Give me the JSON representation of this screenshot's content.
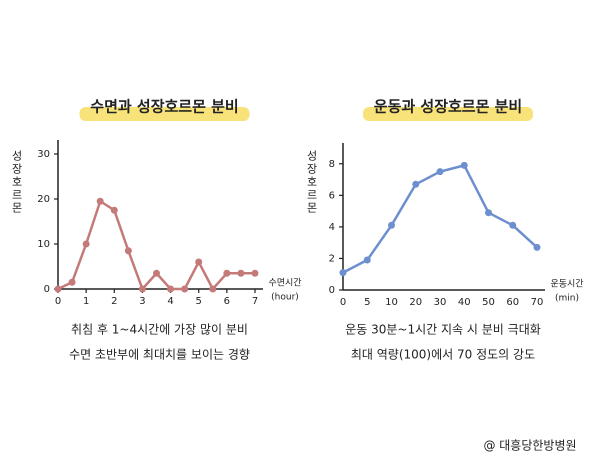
{
  "chart_data": [
    {
      "type": "line",
      "title": "수면과 성장호르몬 분비",
      "ylabel": "성장호르몬",
      "xlabel": "수면시간",
      "xunit": "(hour)",
      "x": [
        0,
        0.5,
        1,
        1.5,
        2,
        2.5,
        3,
        3.5,
        4,
        4.5,
        5,
        5.5,
        6,
        6.5,
        7
      ],
      "series": [
        {
          "color": "#c47a78",
          "values": [
            0,
            1.5,
            10,
            19.5,
            17.5,
            8.5,
            0,
            3.5,
            0,
            0,
            6,
            0,
            3.5,
            3.5,
            3.5
          ]
        }
      ],
      "xlim": [
        0,
        7
      ],
      "xticks": [
        0,
        1,
        2,
        3,
        4,
        5,
        6,
        7
      ],
      "ylim": [
        0,
        32
      ],
      "yticks": [
        0,
        10,
        20,
        30
      ],
      "caption": [
        "취침 후 1~4시간에 가장 많이 분비",
        "수면 초반부에 최대치를 보이는 경향"
      ]
    },
    {
      "type": "line",
      "title": "운동과 성장호르몬 분비",
      "ylabel": "성장호르몬",
      "xlabel": "운동시간",
      "xunit": "(min)",
      "categories": [
        "0",
        "5",
        "10",
        "20",
        "30",
        "40",
        "50",
        "60",
        "70"
      ],
      "series": [
        {
          "color": "#6d8fcf",
          "values": [
            1.1,
            1.9,
            4.1,
            6.7,
            7.5,
            7.9,
            4.9,
            4.1,
            2.7
          ]
        }
      ],
      "ylim": [
        0,
        9
      ],
      "yticks": [
        0,
        2,
        4,
        6,
        8
      ],
      "caption": [
        "운동 30분~1시간 지속 시 분비 극대화",
        "최대 역량(100)에서 70 정도의 강도"
      ]
    }
  ],
  "footer": "@ 대흥당한방병원"
}
